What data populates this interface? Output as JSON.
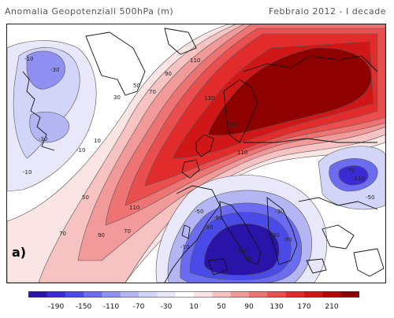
{
  "title": "Anomalia Geopotenziali 500hPa (m)",
  "period": "Febbraio 2012 - I decade",
  "panel_label": "a)",
  "contour_labels": [
    "-10",
    "-30",
    "-30",
    "-10",
    "-10",
    "-70",
    "-110",
    "-90",
    "-50",
    "-50",
    "-30",
    "-70",
    "-130",
    "10",
    "30",
    "50",
    "70",
    "90",
    "110",
    "130",
    "150",
    "70",
    "50",
    "110",
    "110",
    "90",
    "70",
    "-50",
    "-90",
    "-130",
    "-10"
  ],
  "legend": {
    "tick_labels": [
      "-190",
      "-150",
      "-110",
      "-70",
      "-30",
      "10",
      "50",
      "90",
      "130",
      "170",
      "210"
    ],
    "colors": [
      "#2a13a8",
      "#3b2bd6",
      "#4a4ae8",
      "#6c6cf0",
      "#9090f2",
      "#b4b6f4",
      "#d2d4f8",
      "#e8e8fa",
      "#ffffff",
      "#fbe4e4",
      "#f6c2c2",
      "#f29a9a",
      "#ee7474",
      "#ea4e4e",
      "#e22c2c",
      "#d01616",
      "#b80606",
      "#8f0000"
    ]
  },
  "colors": {
    "land_outline": "#111111",
    "contour": "#333333"
  }
}
